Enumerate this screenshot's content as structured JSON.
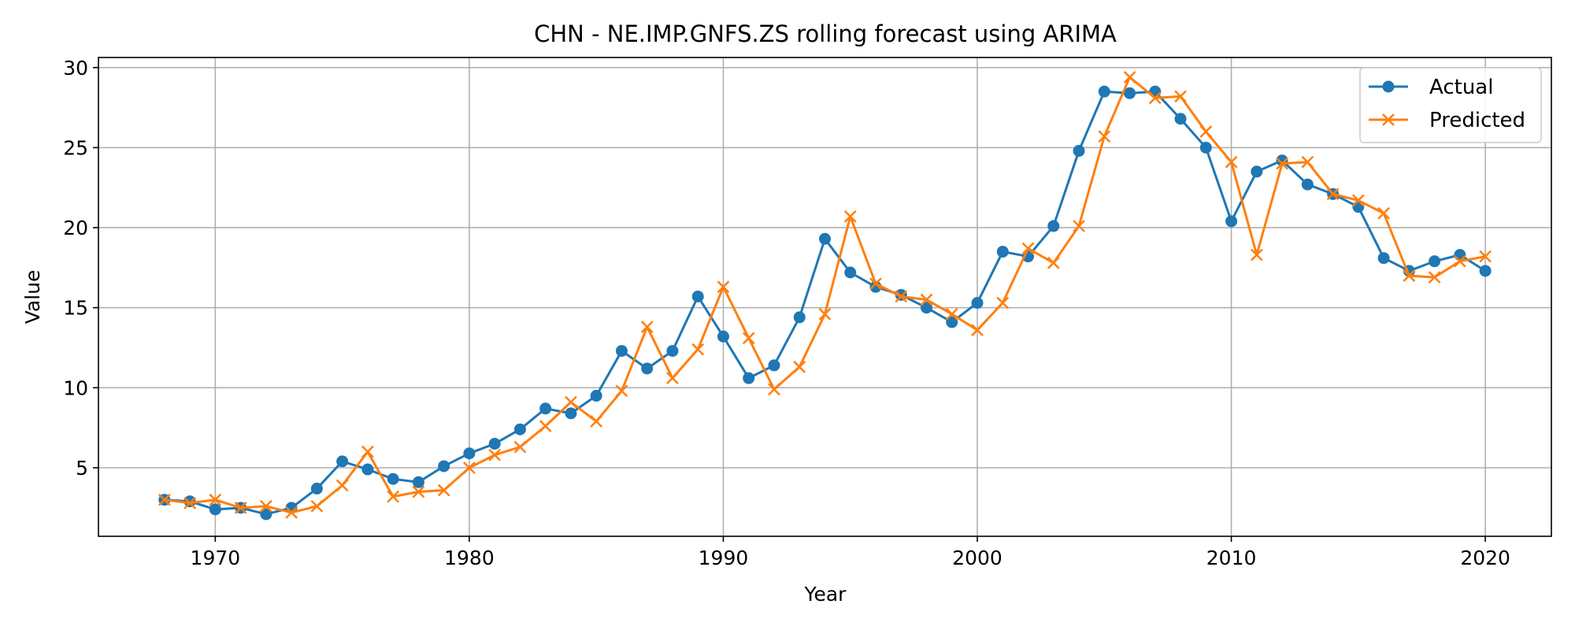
{
  "chart_data": {
    "type": "line",
    "title": "CHN - NE.IMP.GNFS.ZS rolling forecast using ARIMA",
    "xlabel": "Year",
    "ylabel": "Value",
    "xlim": [
      1965.4,
      2022.6
    ],
    "ylim": [
      0.72,
      30.63
    ],
    "xticks": [
      1970,
      1980,
      1990,
      2000,
      2010,
      2020
    ],
    "yticks": [
      5,
      10,
      15,
      20,
      25,
      30
    ],
    "grid": true,
    "legend_position": "top-right",
    "x": [
      1968,
      1969,
      1970,
      1971,
      1972,
      1973,
      1974,
      1975,
      1976,
      1977,
      1978,
      1979,
      1980,
      1981,
      1982,
      1983,
      1984,
      1985,
      1986,
      1987,
      1988,
      1989,
      1990,
      1991,
      1992,
      1993,
      1994,
      1995,
      1996,
      1997,
      1998,
      1999,
      2000,
      2001,
      2002,
      2003,
      2004,
      2005,
      2006,
      2007,
      2008,
      2009,
      2010,
      2011,
      2012,
      2013,
      2014,
      2015,
      2016,
      2017,
      2018,
      2019,
      2020
    ],
    "series": [
      {
        "name": "Actual",
        "color": "#1f77b4",
        "marker": "circle",
        "values": [
          3.0,
          2.9,
          2.4,
          2.5,
          2.1,
          2.5,
          3.7,
          5.4,
          4.9,
          4.3,
          4.1,
          5.1,
          5.9,
          6.5,
          7.4,
          8.7,
          8.4,
          9.5,
          12.3,
          11.2,
          12.3,
          15.7,
          13.2,
          10.6,
          11.4,
          14.4,
          19.3,
          17.2,
          16.3,
          15.8,
          15.0,
          14.1,
          15.3,
          18.5,
          18.2,
          20.1,
          24.8,
          28.5,
          28.4,
          28.5,
          26.8,
          25.0,
          20.4,
          23.5,
          24.2,
          22.7,
          22.1,
          21.3,
          18.1,
          17.3,
          17.9,
          18.3,
          17.3
        ]
      },
      {
        "name": "Predicted",
        "color": "#ff7f0e",
        "marker": "x",
        "values": [
          3.0,
          2.8,
          3.0,
          2.5,
          2.6,
          2.2,
          2.6,
          3.9,
          6.0,
          3.2,
          3.5,
          3.6,
          5.0,
          5.8,
          6.3,
          7.6,
          9.1,
          7.9,
          9.8,
          13.8,
          10.6,
          12.4,
          16.3,
          13.1,
          9.9,
          11.3,
          14.6,
          20.7,
          16.5,
          15.7,
          15.5,
          14.6,
          13.6,
          15.3,
          18.7,
          17.8,
          20.1,
          25.7,
          29.4,
          28.1,
          28.2,
          26.0,
          24.1,
          18.3,
          24.0,
          24.1,
          22.1,
          21.7,
          20.9,
          17.0,
          16.9,
          17.9,
          18.2
        ]
      }
    ]
  }
}
